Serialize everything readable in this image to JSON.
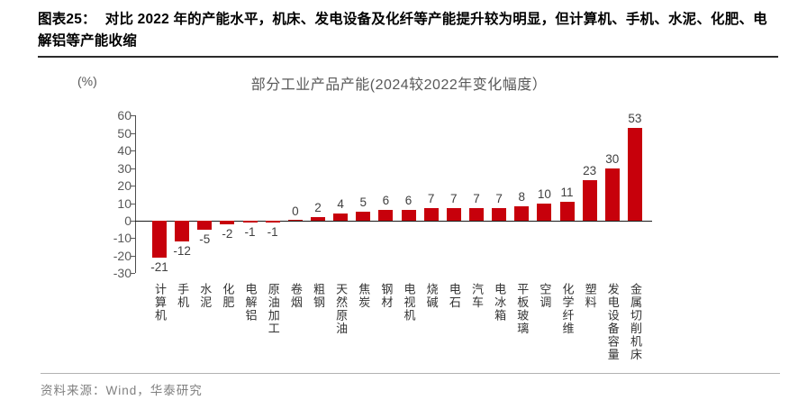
{
  "header": {
    "figure_label": "图表25：",
    "title": "对比 2022 年的产能水平，机床、发电设备及化纤等产能提升较为明显，但计算机、手机、水泥、化肥、电解铝等产能收缩"
  },
  "chart_data": {
    "type": "bar",
    "title": "部分工业产品产能(2024较2022年变化幅度）",
    "unit_label": "(%)",
    "categories": [
      "计算机",
      "手机",
      "水泥",
      "化肥",
      "电解铝",
      "原油加工",
      "卷烟",
      "粗钢",
      "天然原油",
      "焦炭",
      "钢材",
      "电视机",
      "烧碱",
      "电石",
      "汽车",
      "电冰箱",
      "平板玻璃",
      "空调",
      "化学纤维",
      "塑料",
      "发电设备容量",
      "金属切削机床"
    ],
    "values": [
      -21,
      -12,
      -5,
      -2,
      -1,
      -1,
      0,
      2,
      4,
      5,
      6,
      6,
      7,
      7,
      7,
      7,
      8,
      10,
      11,
      23,
      30,
      53
    ],
    "ylim": [
      -30,
      60
    ],
    "yticks": [
      60,
      50,
      40,
      30,
      20,
      10,
      0,
      -10,
      -20,
      -30
    ],
    "xlabel": "",
    "ylabel": "(%)",
    "grid": false,
    "legend": false,
    "bar_color": "#c7000b",
    "axis_text_color": "#595959",
    "value_label_color": "#404040"
  },
  "footer": {
    "source": "资料来源：Wind，华泰研究"
  }
}
